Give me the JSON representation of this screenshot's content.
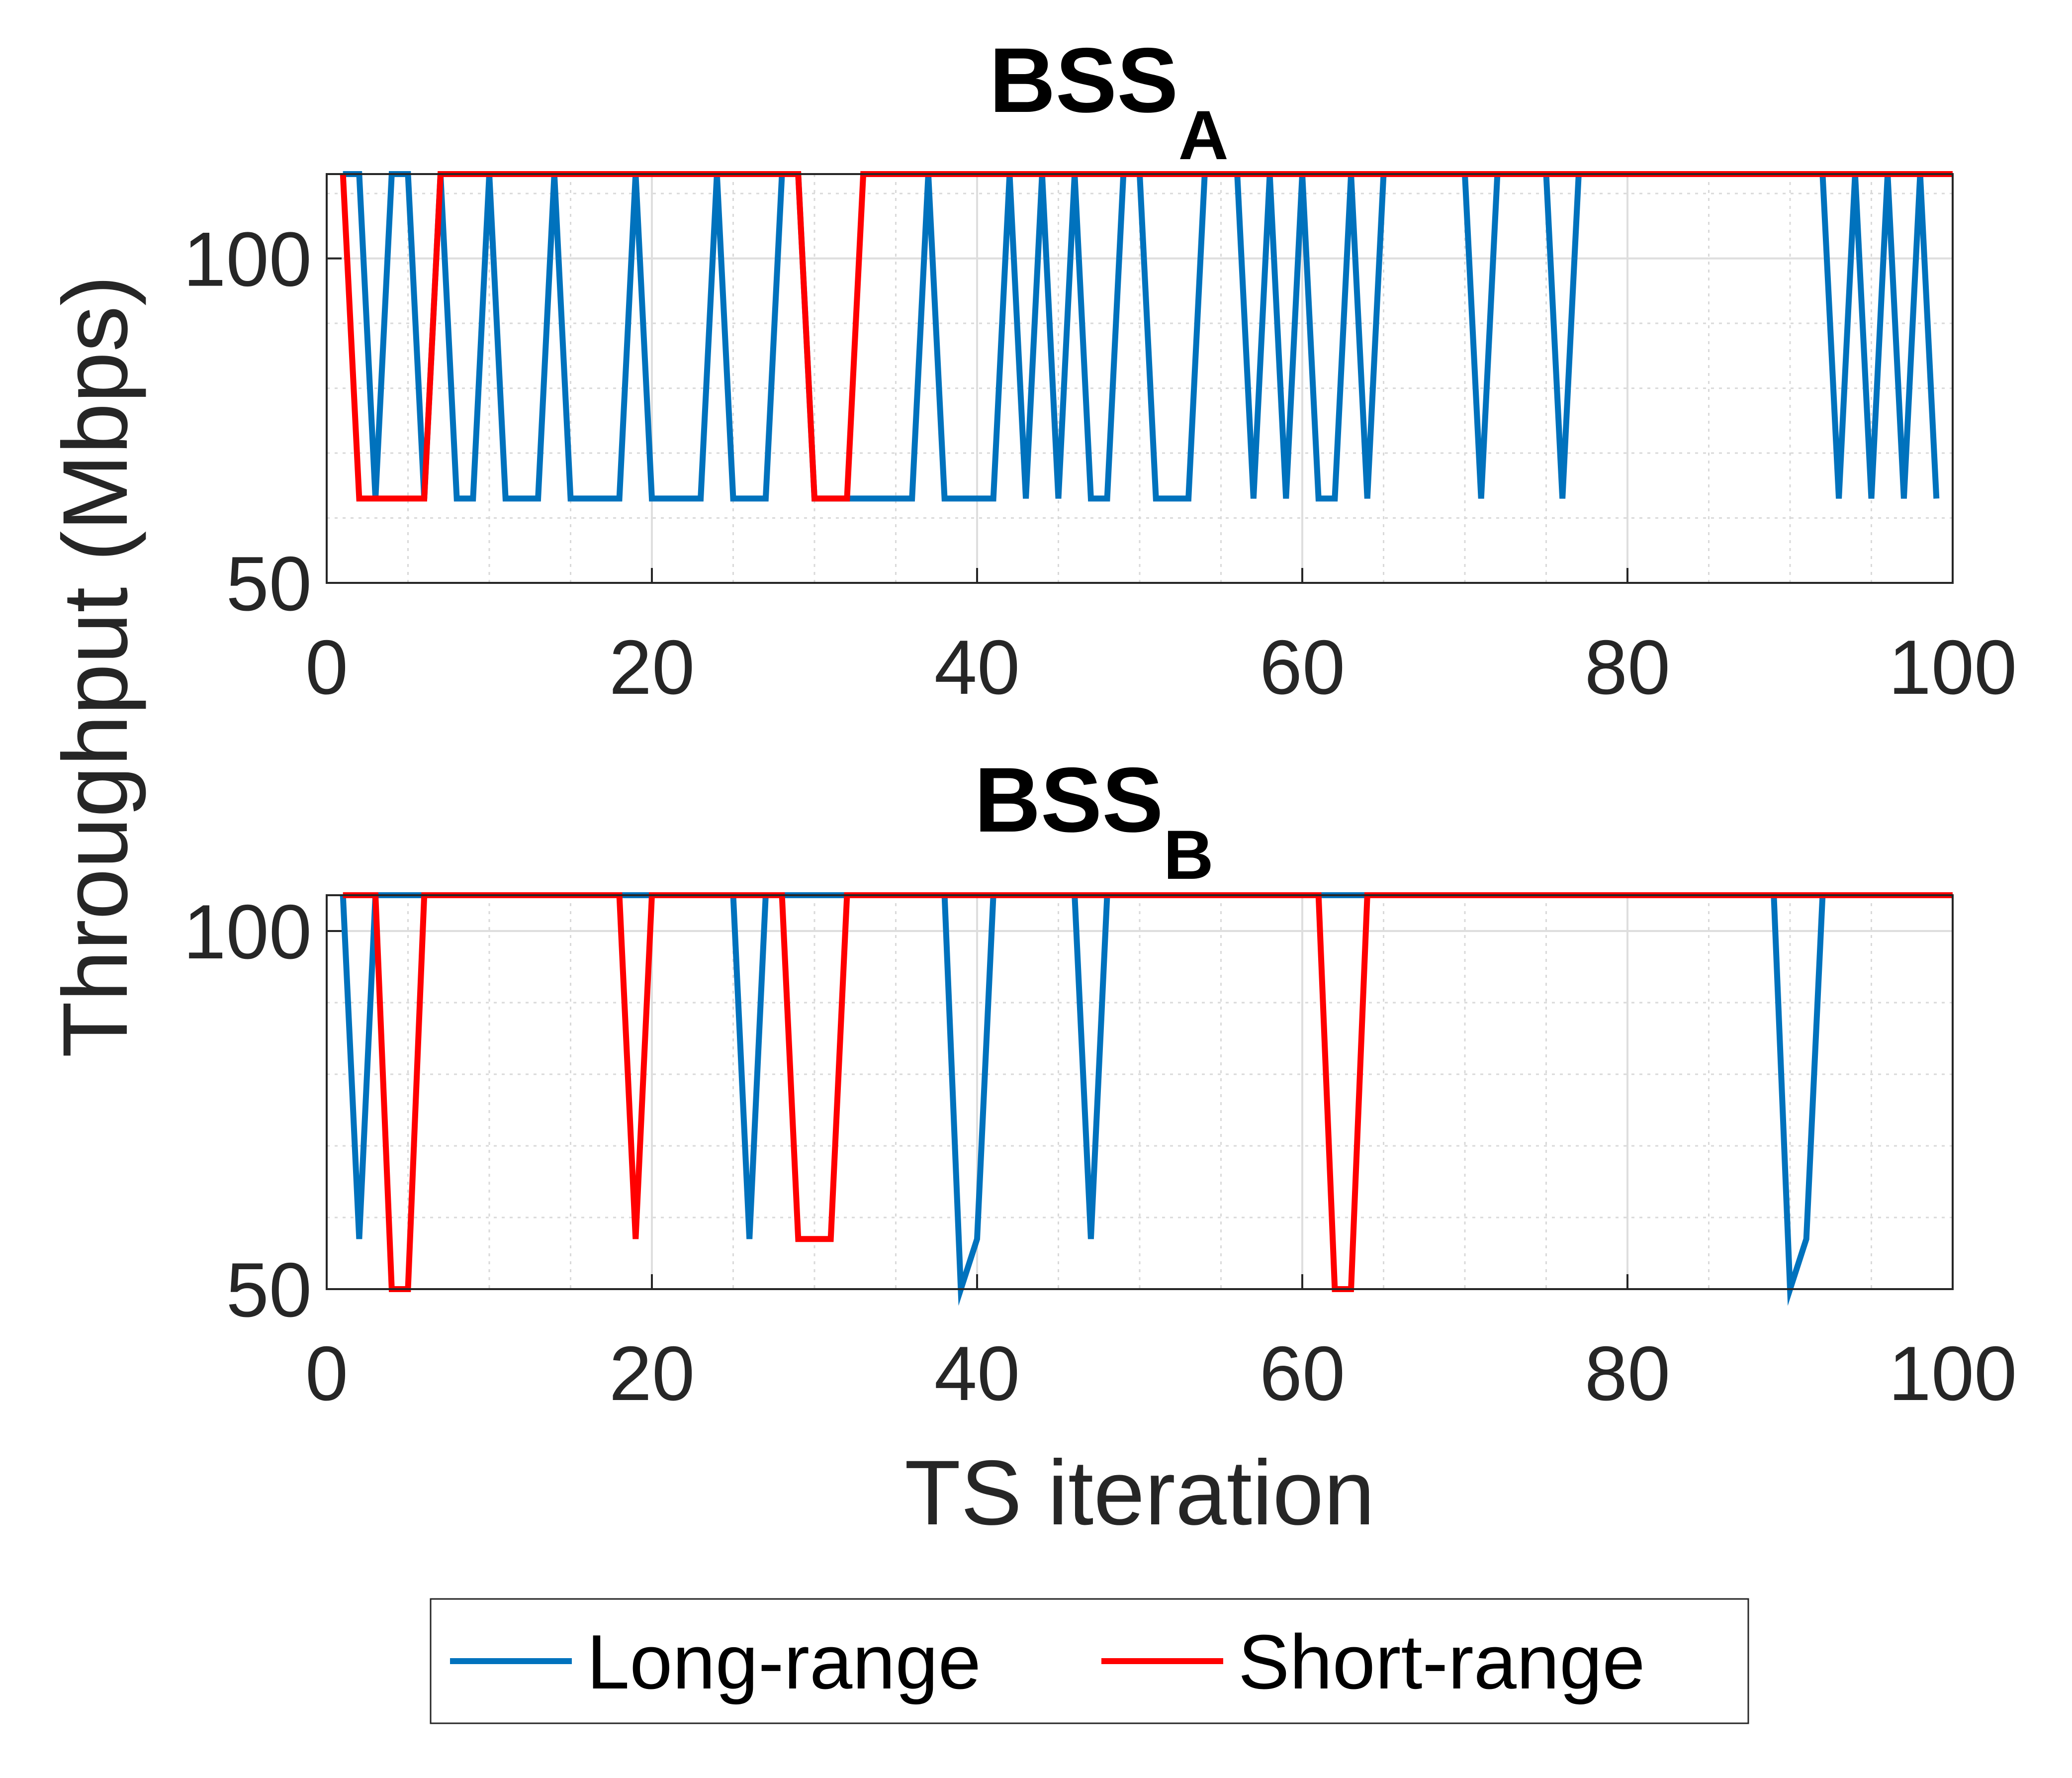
{
  "chart_data": [
    {
      "type": "line",
      "title": "BSS",
      "title_subscript": "A",
      "xlabel": "",
      "ylabel": "Throughput (Mbps)",
      "xlim": [
        0,
        100
      ],
      "ylim": [
        50,
        113
      ],
      "xticks": [
        "0",
        "20",
        "40",
        "60",
        "80",
        "100"
      ],
      "yticks": [
        "50",
        "100"
      ],
      "grid": true,
      "series": [
        {
          "name": "Long-range",
          "color": "#0072BD",
          "x": [
            1,
            2,
            3,
            4,
            5,
            6,
            7,
            8,
            9,
            10,
            11,
            12,
            13,
            14,
            15,
            16,
            17,
            18,
            19,
            20,
            21,
            22,
            23,
            24,
            25,
            26,
            27,
            28,
            29,
            30,
            31,
            32,
            33,
            34,
            35,
            36,
            37,
            38,
            39,
            40,
            41,
            42,
            43,
            44,
            45,
            46,
            47,
            48,
            49,
            50,
            51,
            52,
            53,
            54,
            55,
            56,
            57,
            58,
            59,
            60,
            61,
            62,
            63,
            64,
            65,
            66,
            67,
            68,
            69,
            70,
            71,
            72,
            73,
            74,
            75,
            76,
            77,
            78,
            79,
            80,
            81,
            82,
            83,
            84,
            85,
            86,
            87,
            88,
            89,
            90,
            91,
            92,
            93,
            94,
            95,
            96,
            97,
            98,
            99
          ],
          "y": [
            113,
            113,
            63,
            113,
            113,
            63,
            113,
            63,
            63,
            113,
            63,
            63,
            63,
            113,
            63,
            63,
            63,
            63,
            113,
            63,
            63,
            63,
            63,
            113,
            63,
            63,
            63,
            113,
            113,
            63,
            63,
            63,
            63,
            63,
            63,
            63,
            113,
            63,
            63,
            63,
            63,
            113,
            63,
            113,
            63,
            113,
            63,
            63,
            113,
            113,
            63,
            63,
            63,
            113,
            113,
            113,
            63,
            113,
            63,
            113,
            63,
            63,
            113,
            63,
            113,
            113,
            113,
            113,
            113,
            113,
            63,
            113,
            113,
            113,
            113,
            63,
            113,
            113,
            113,
            113,
            113,
            113,
            113,
            113,
            113,
            113,
            113,
            113,
            113,
            113,
            113,
            113,
            63,
            113,
            63,
            113,
            63,
            113,
            63
          ]
        },
        {
          "name": "Short-range",
          "color": "#FF0000",
          "x": [
            1,
            2,
            3,
            4,
            5,
            6,
            7,
            8,
            9,
            10,
            11,
            12,
            13,
            14,
            15,
            16,
            17,
            18,
            19,
            20,
            21,
            22,
            23,
            24,
            25,
            26,
            27,
            28,
            29,
            30,
            31,
            32,
            33,
            34,
            35,
            36,
            37,
            38,
            39,
            40,
            41,
            42,
            43,
            44,
            45,
            46,
            47,
            48,
            49,
            50,
            51,
            52,
            53,
            54,
            55,
            56,
            57,
            58,
            59,
            60,
            61,
            62,
            63,
            64,
            65,
            66,
            67,
            68,
            69,
            70,
            71,
            72,
            73,
            74,
            75,
            76,
            77,
            78,
            79,
            80,
            81,
            82,
            83,
            84,
            85,
            86,
            87,
            88,
            89,
            90,
            91,
            92,
            93,
            94,
            95,
            96,
            97,
            98,
            99,
            100
          ],
          "y": [
            113,
            63,
            63,
            63,
            63,
            63,
            113,
            113,
            113,
            113,
            113,
            113,
            113,
            113,
            113,
            113,
            113,
            113,
            113,
            113,
            113,
            113,
            113,
            113,
            113,
            113,
            113,
            113,
            113,
            63,
            63,
            63,
            113,
            113,
            113,
            113,
            113,
            113,
            113,
            113,
            113,
            113,
            113,
            113,
            113,
            113,
            113,
            113,
            113,
            113,
            113,
            113,
            113,
            113,
            113,
            113,
            113,
            113,
            113,
            113,
            113,
            113,
            113,
            113,
            113,
            113,
            113,
            113,
            113,
            113,
            113,
            113,
            113,
            113,
            113,
            113,
            113,
            113,
            113,
            113,
            113,
            113,
            113,
            113,
            113,
            113,
            113,
            113,
            113,
            113,
            113,
            113,
            113,
            113,
            113,
            113,
            113,
            113,
            113,
            113
          ]
        }
      ]
    },
    {
      "type": "line",
      "title": "BSS",
      "title_subscript": "B",
      "xlabel": "TS iteration",
      "ylabel": "Throughput (Mbps)",
      "xlim": [
        0,
        100
      ],
      "ylim": [
        50,
        105
      ],
      "xticks": [
        "0",
        "20",
        "40",
        "60",
        "80",
        "100"
      ],
      "yticks": [
        "50",
        "100"
      ],
      "grid": true,
      "series": [
        {
          "name": "Long-range",
          "color": "#0072BD",
          "x": [
            1,
            2,
            3,
            4,
            5,
            6,
            7,
            8,
            9,
            10,
            11,
            12,
            13,
            14,
            15,
            16,
            17,
            18,
            19,
            20,
            21,
            22,
            23,
            24,
            25,
            26,
            27,
            28,
            29,
            30,
            31,
            32,
            33,
            34,
            35,
            36,
            37,
            38,
            39,
            40,
            41,
            42,
            43,
            44,
            45,
            46,
            47,
            48,
            49,
            50,
            51,
            52,
            53,
            54,
            55,
            56,
            57,
            58,
            59,
            60,
            61,
            62,
            63,
            64,
            65,
            66,
            67,
            68,
            69,
            70,
            71,
            72,
            73,
            74,
            75,
            76,
            77,
            78,
            79,
            80,
            81,
            82,
            83,
            84,
            85,
            86,
            87,
            88,
            89,
            90,
            91,
            92,
            93,
            94,
            95,
            96,
            97,
            98,
            99
          ],
          "y": [
            105,
            57,
            105,
            105,
            105,
            105,
            105,
            105,
            105,
            105,
            105,
            105,
            105,
            105,
            105,
            105,
            105,
            105,
            105,
            105,
            105,
            105,
            105,
            105,
            105,
            57,
            105,
            105,
            105,
            105,
            105,
            105,
            105,
            105,
            105,
            105,
            105,
            105,
            50,
            57,
            105,
            105,
            105,
            105,
            105,
            105,
            57,
            105,
            105,
            105,
            105,
            105,
            105,
            105,
            105,
            105,
            105,
            105,
            105,
            105,
            105,
            105,
            105,
            105,
            105,
            105,
            105,
            105,
            105,
            105,
            105,
            105,
            105,
            105,
            105,
            105,
            105,
            105,
            105,
            105,
            105,
            105,
            105,
            105,
            105,
            105,
            105,
            105,
            105,
            50,
            57,
            105,
            105,
            105,
            105,
            105,
            105,
            105,
            105
          ]
        },
        {
          "name": "Short-range",
          "color": "#FF0000",
          "x": [
            1,
            2,
            3,
            4,
            5,
            6,
            7,
            8,
            9,
            10,
            11,
            12,
            13,
            14,
            15,
            16,
            17,
            18,
            19,
            20,
            21,
            22,
            23,
            24,
            25,
            26,
            27,
            28,
            29,
            30,
            31,
            32,
            33,
            34,
            35,
            36,
            37,
            38,
            39,
            40,
            41,
            42,
            43,
            44,
            45,
            46,
            47,
            48,
            49,
            50,
            51,
            52,
            53,
            54,
            55,
            56,
            57,
            58,
            59,
            60,
            61,
            62,
            63,
            64,
            65,
            66,
            67,
            68,
            69,
            70,
            71,
            72,
            73,
            74,
            75,
            76,
            77,
            78,
            79,
            80,
            81,
            82,
            83,
            84,
            85,
            86,
            87,
            88,
            89,
            90,
            91,
            92,
            93,
            94,
            95,
            96,
            97,
            98,
            99,
            100
          ],
          "y": [
            105,
            105,
            105,
            50,
            50,
            105,
            105,
            105,
            105,
            105,
            105,
            105,
            105,
            105,
            105,
            105,
            105,
            105,
            57,
            105,
            105,
            105,
            105,
            105,
            105,
            105,
            105,
            105,
            57,
            57,
            57,
            105,
            105,
            105,
            105,
            105,
            105,
            105,
            105,
            105,
            105,
            105,
            105,
            105,
            105,
            105,
            105,
            105,
            105,
            105,
            105,
            105,
            105,
            105,
            105,
            105,
            105,
            105,
            105,
            105,
            105,
            50,
            50,
            105,
            105,
            105,
            105,
            105,
            105,
            105,
            105,
            105,
            105,
            105,
            105,
            105,
            105,
            105,
            105,
            105,
            105,
            105,
            105,
            105,
            105,
            105,
            105,
            105,
            105,
            105,
            105,
            105,
            105,
            105,
            105,
            105,
            105,
            105,
            105,
            105
          ]
        }
      ]
    }
  ],
  "legend": {
    "placement": "bottom",
    "entries": [
      "Long-range",
      "Short-range"
    ]
  }
}
